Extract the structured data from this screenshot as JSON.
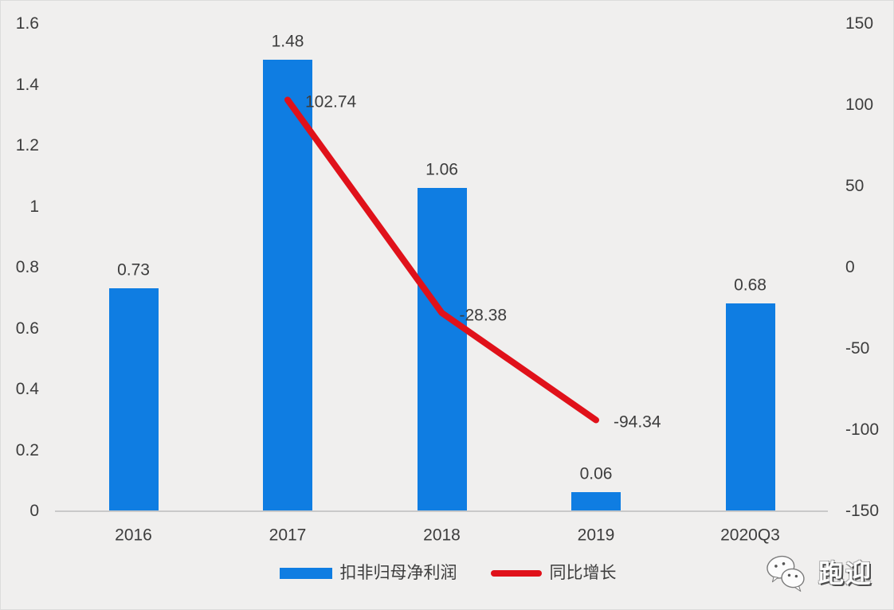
{
  "chart_data": {
    "type": "bar",
    "subtype": "combo-bar-line",
    "categories": [
      "2016",
      "2017",
      "2018",
      "2019",
      "2020Q3"
    ],
    "series": [
      {
        "name": "扣非归母净利润",
        "type": "bar",
        "axis": "left",
        "color": "#0f7de2",
        "values": [
          0.73,
          1.48,
          1.06,
          0.06,
          0.68
        ],
        "labels": [
          "0.73",
          "1.48",
          "1.06",
          "0.06",
          "0.68"
        ]
      },
      {
        "name": "同比增长",
        "type": "line",
        "axis": "right",
        "color": "#e0111a",
        "values": [
          null,
          102.74,
          -28.38,
          -94.34,
          null
        ],
        "labels": [
          "",
          "102.74",
          "-28.38",
          "-94.34",
          ""
        ]
      }
    ],
    "title": "",
    "xlabel": "",
    "ylabel": "",
    "left_axis": {
      "min": 0,
      "max": 1.6,
      "ticks": [
        "1.6",
        "1.4",
        "1.2",
        "1",
        "0.8",
        "0.6",
        "0.4",
        "0.2",
        "0"
      ]
    },
    "right_axis": {
      "min": -150,
      "max": 150,
      "ticks": [
        "150",
        "100",
        "50",
        "0",
        "-50",
        "-100",
        "-150"
      ]
    },
    "grid": false,
    "legend_position": "bottom",
    "legend": [
      {
        "label": "扣非归母净利润",
        "color": "#0f7de2",
        "shape": "rect"
      },
      {
        "label": "同比增长",
        "color": "#e0111a",
        "shape": "line"
      }
    ],
    "background": "#f0efee",
    "text_color": "#3d3d3d",
    "axis_line_color": "#c9c9c9"
  },
  "watermark": {
    "icon": "wechat-icon",
    "text": "跑迎"
  }
}
